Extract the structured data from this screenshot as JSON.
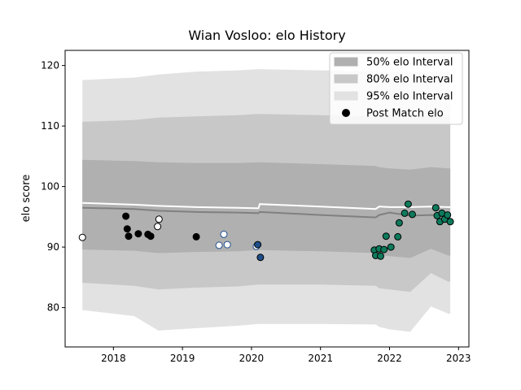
{
  "chart_data": {
    "type": "scatter",
    "title": "Wian Vosloo: elo History",
    "xlabel": "",
    "ylabel": "elo score",
    "xlim": [
      2017.3,
      2023.15
    ],
    "ylim": [
      73.5,
      122.5
    ],
    "x_ticks": [
      2018,
      2019,
      2020,
      2021,
      2022,
      2023
    ],
    "x_tick_labels": [
      "2018",
      "2019",
      "2020",
      "2021",
      "2022",
      "2023"
    ],
    "y_ticks": [
      80,
      90,
      100,
      110,
      120
    ],
    "y_tick_labels": [
      "80",
      "90",
      "100",
      "110",
      "120"
    ],
    "grid": false,
    "legend_position": "top-right",
    "legend": [
      {
        "label": "50% elo Interval",
        "kind": "band",
        "color": "#b0b0b0"
      },
      {
        "label": "80% elo Interval",
        "kind": "band",
        "color": "#c8c8c8"
      },
      {
        "label": "95% elo Interval",
        "kind": "band",
        "color": "#e2e2e2"
      },
      {
        "label": "Post Match elo",
        "kind": "marker",
        "color": "#000000"
      }
    ],
    "bands": {
      "x": [
        2017.55,
        2018.3,
        2018.65,
        2019.2,
        2019.8,
        2020.1,
        2020.12,
        2021.0,
        2021.8,
        2021.85,
        2022.0,
        2022.3,
        2022.6,
        2022.85,
        2022.88
      ],
      "interval_95": {
        "upper": [
          117.6,
          118.0,
          118.5,
          119.0,
          119.2,
          119.4,
          119.4,
          119.2,
          119.1,
          119.0,
          119.0,
          119.0,
          119.0,
          119.0,
          119.0
        ],
        "lower": [
          79.6,
          78.6,
          76.2,
          76.6,
          77.0,
          77.3,
          77.3,
          77.3,
          77.2,
          76.8,
          76.4,
          76.0,
          80.2,
          79.0,
          79.0
        ]
      },
      "interval_80": {
        "upper": [
          110.7,
          111.0,
          111.4,
          111.6,
          111.8,
          112.0,
          112.0,
          111.8,
          111.6,
          111.5,
          111.5,
          111.5,
          111.6,
          111.5,
          111.5
        ],
        "lower": [
          84.1,
          83.6,
          83.0,
          83.3,
          83.5,
          83.8,
          83.8,
          83.8,
          83.6,
          83.2,
          83.0,
          82.6,
          85.7,
          84.3,
          84.3
        ]
      },
      "interval_50": {
        "upper": [
          104.4,
          104.2,
          104.0,
          103.9,
          103.9,
          104.0,
          104.0,
          103.7,
          103.4,
          103.2,
          103.0,
          102.8,
          103.2,
          103.0,
          103.0
        ],
        "lower": [
          89.6,
          89.4,
          89.0,
          89.2,
          89.3,
          89.5,
          89.5,
          89.3,
          89.0,
          88.7,
          88.5,
          88.2,
          89.7,
          88.6,
          88.6
        ]
      }
    },
    "mean_line": {
      "x": [
        2017.55,
        2018.3,
        2018.65,
        2019.2,
        2019.8,
        2020.1,
        2020.12,
        2021.0,
        2021.8,
        2021.85,
        2022.0,
        2022.3,
        2022.6,
        2022.85,
        2022.88
      ],
      "values": [
        96.5,
        96.3,
        96.0,
        95.8,
        95.7,
        95.6,
        95.8,
        95.3,
        94.9,
        95.3,
        95.7,
        95.2,
        95.3,
        95.2,
        95.2
      ],
      "color": "#808080"
    },
    "upper_line": {
      "x": [
        2017.55,
        2018.3,
        2018.65,
        2019.2,
        2019.8,
        2020.1,
        2020.12,
        2021.0,
        2021.8,
        2021.85,
        2022.0,
        2022.3,
        2022.6,
        2022.85,
        2022.88
      ],
      "values": [
        97.3,
        97.0,
        96.8,
        96.6,
        96.5,
        96.4,
        97.1,
        96.7,
        96.3,
        96.7,
        96.6,
        96.6,
        96.7,
        96.6,
        96.6
      ],
      "color": "#ffffff"
    },
    "series": [
      {
        "color": "#ffffff",
        "points": [
          {
            "x": 2017.55,
            "y": 91.6
          },
          {
            "x": 2018.64,
            "y": 93.4
          },
          {
            "x": 2018.66,
            "y": 94.6
          }
        ]
      },
      {
        "color": "#000000",
        "points": [
          {
            "x": 2018.18,
            "y": 95.1
          },
          {
            "x": 2018.2,
            "y": 93.0
          },
          {
            "x": 2018.22,
            "y": 91.8
          },
          {
            "x": 2018.36,
            "y": 92.2
          },
          {
            "x": 2018.5,
            "y": 92.1
          },
          {
            "x": 2018.54,
            "y": 91.8
          },
          {
            "x": 2019.2,
            "y": 91.7
          }
        ]
      },
      {
        "color": "#ffffff",
        "edge": "#1f4e8c",
        "points": [
          {
            "x": 2019.53,
            "y": 90.3
          },
          {
            "x": 2019.6,
            "y": 92.1
          },
          {
            "x": 2019.65,
            "y": 90.4
          },
          {
            "x": 2020.07,
            "y": 90.1
          }
        ]
      },
      {
        "color": "#1f4e8c",
        "points": [
          {
            "x": 2020.09,
            "y": 90.4
          },
          {
            "x": 2020.13,
            "y": 88.3
          }
        ]
      },
      {
        "color": "#0e7a5c",
        "points": [
          {
            "x": 2021.78,
            "y": 89.5
          },
          {
            "x": 2021.8,
            "y": 88.6
          },
          {
            "x": 2021.85,
            "y": 89.7
          },
          {
            "x": 2021.87,
            "y": 88.5
          },
          {
            "x": 2021.92,
            "y": 89.6
          },
          {
            "x": 2021.95,
            "y": 91.8
          },
          {
            "x": 2022.02,
            "y": 90.0
          },
          {
            "x": 2022.12,
            "y": 91.7
          },
          {
            "x": 2022.14,
            "y": 94.0
          },
          {
            "x": 2022.22,
            "y": 95.6
          },
          {
            "x": 2022.27,
            "y": 97.1
          },
          {
            "x": 2022.33,
            "y": 95.4
          },
          {
            "x": 2022.67,
            "y": 96.5
          },
          {
            "x": 2022.69,
            "y": 95.2
          },
          {
            "x": 2022.73,
            "y": 94.2
          },
          {
            "x": 2022.76,
            "y": 95.6
          },
          {
            "x": 2022.8,
            "y": 94.6
          },
          {
            "x": 2022.84,
            "y": 95.3
          },
          {
            "x": 2022.88,
            "y": 94.2
          }
        ]
      }
    ]
  }
}
